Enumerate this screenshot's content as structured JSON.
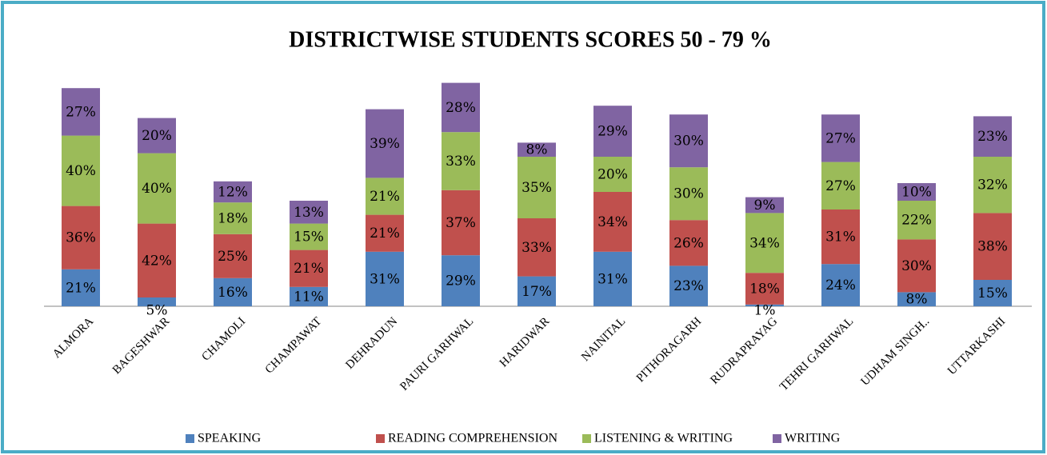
{
  "chart_data": {
    "type": "stacked-bar",
    "title": "DISTRICTWISE STUDENTS SCORES  50 - 79 %",
    "categories": [
      "ALMORA",
      "BAGESHWAR",
      "CHAMOLI",
      "CHAMPAWAT",
      "DEHRADUN",
      "PAURI GARHWAL",
      "HARIDWAR",
      "NAINITAL",
      "PITHORAGARH",
      "RUDRAPRAYAG",
      "TEHRI GARHWAL",
      "UDHAM SINGH..",
      "UTTARKASHI"
    ],
    "series": [
      {
        "name": "SPEAKING",
        "color": "#4f81bd",
        "values": [
          21,
          5,
          16,
          11,
          31,
          29,
          17,
          31,
          23,
          1,
          24,
          8,
          15
        ],
        "value_labels": [
          "21%",
          "5%",
          "16%",
          "11%",
          "31%",
          "29%",
          "17%",
          "31%",
          "23%",
          "1%",
          "24%",
          "8%",
          "15%"
        ]
      },
      {
        "name": "READING COMPREHENSION",
        "color": "#c0504d",
        "values": [
          36,
          42,
          25,
          21,
          21,
          37,
          33,
          34,
          26,
          18,
          31,
          30,
          38
        ],
        "value_labels": [
          "36%",
          "42%",
          "25%",
          "21%",
          "21%",
          "37%",
          "33%",
          "34%",
          "26%",
          "18%",
          "31%",
          "30%",
          "38%"
        ]
      },
      {
        "name": "LISTENING & WRITING",
        "color": "#9bbb59",
        "values": [
          40,
          40,
          18,
          15,
          21,
          33,
          35,
          20,
          30,
          34,
          27,
          22,
          32
        ],
        "value_labels": [
          "40%",
          "40%",
          "18%",
          "15%",
          "21%",
          "33%",
          "35%",
          "20%",
          "30%",
          "34%",
          "27%",
          "22%",
          "32%"
        ]
      },
      {
        "name": "WRITING",
        "color": "#8064a2",
        "values": [
          27,
          20,
          12,
          13,
          39,
          28,
          8,
          29,
          30,
          9,
          27,
          10,
          23
        ],
        "value_labels": [
          "27%",
          "20%",
          "12%",
          "13%",
          "39%",
          "28%",
          "8%",
          "29%",
          "30%",
          "9%",
          "27%",
          "10%",
          "23%"
        ]
      }
    ],
    "legend": "bottom"
  }
}
